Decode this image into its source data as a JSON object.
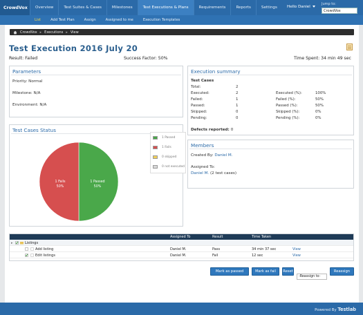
{
  "app": {
    "brand": "CrowdVox"
  },
  "nav": {
    "items": [
      "Overview",
      "Test Suites & Cases",
      "Milestones",
      "Test Executions & Plans",
      "Requirements",
      "Reports",
      "Settings"
    ],
    "active_index": 3,
    "hello": "Hello Daniel",
    "jump_label": "Jump to:",
    "jump_value": "CrowdVox"
  },
  "subnav": {
    "items": [
      "List",
      "Add Test Plan",
      "Assign",
      "Assigned to me",
      "Execution Templates"
    ],
    "active_index": 0
  },
  "breadcrumb": [
    "CrowdVox",
    "Executions",
    "View"
  ],
  "page": {
    "title": "Test Execution 2016 July 20",
    "result": "Result: Failed",
    "success": "Success Factor: 50%",
    "time_spent": "Time Spent: 34 min 49 sec"
  },
  "parameters": {
    "title": "Parameters",
    "priority": "Priority: Normal",
    "milestone": "Milestone: N/A",
    "environment": "Environment: N/A"
  },
  "execution_summary": {
    "title": "Execution summary",
    "subtitle": "Test Cases",
    "left": [
      {
        "label": "Total:",
        "value": "2"
      },
      {
        "label": "Executed:",
        "value": "2"
      },
      {
        "label": "Failed:",
        "value": "1"
      },
      {
        "label": "Passed:",
        "value": "1"
      },
      {
        "label": "Skipped:",
        "value": "0"
      },
      {
        "label": "Pending:",
        "value": "0"
      }
    ],
    "right": [
      {
        "label": "Executed (%):",
        "value": "100%"
      },
      {
        "label": "Failed (%):",
        "value": "50%"
      },
      {
        "label": "Passed (%):",
        "value": "50%"
      },
      {
        "label": "Skipped (%):",
        "value": "0%"
      },
      {
        "label": "Pending (%):",
        "value": "0%"
      }
    ],
    "defects_label": "Defects reported:",
    "defects_value": "0"
  },
  "status": {
    "title": "Test Cases Status",
    "legend": [
      {
        "label": "1 Passed",
        "color": "#4aa84a"
      },
      {
        "label": "1 Fails",
        "color": "#d64f4f"
      },
      {
        "label": "0 skipped",
        "color": "#f1cf5a"
      },
      {
        "label": "0 not executed",
        "color": "#d9d9d9"
      }
    ],
    "slice_labels": {
      "fail_line1": "1 Fails",
      "fail_line2": "50%",
      "pass_line1": "1 Passed",
      "pass_line2": "50%"
    }
  },
  "members": {
    "title": "Members",
    "created_by_label": "Created By:",
    "created_by": "Daniel M.",
    "assigned_to_label": "Assigned To:",
    "assigned_name": "Daniel M.",
    "assigned_note": "(2 test cases)"
  },
  "table": {
    "headers": [
      "Assigned To",
      "Result",
      "Time Taken"
    ],
    "group": "Listings",
    "rows": [
      {
        "name": "Add listing",
        "assigned": "Daniel M.",
        "result": "Pass",
        "time": "34 min 37 sec",
        "action": "View"
      },
      {
        "name": "Edit listings",
        "assigned": "Daniel M.",
        "result": "Fail",
        "time": "12 sec",
        "action": "View"
      }
    ]
  },
  "buttons": {
    "mark_passed": "Mark as passed",
    "mark_fail": "Mark as fail",
    "reset": "Reset",
    "reassign_select": "-Reassign to-",
    "reassign": "Reassign"
  },
  "footer": {
    "powered_prefix": "Powered By",
    "powered_brand": "Testlab"
  },
  "chart_data": {
    "type": "pie",
    "categories": [
      "Passed",
      "Fails",
      "skipped",
      "not executed"
    ],
    "values": [
      1,
      1,
      0,
      0
    ],
    "colors": [
      "#4aa84a",
      "#d64f4f",
      "#f1cf5a",
      "#d9d9d9"
    ],
    "title": "Test Cases Status",
    "legend": "right"
  }
}
